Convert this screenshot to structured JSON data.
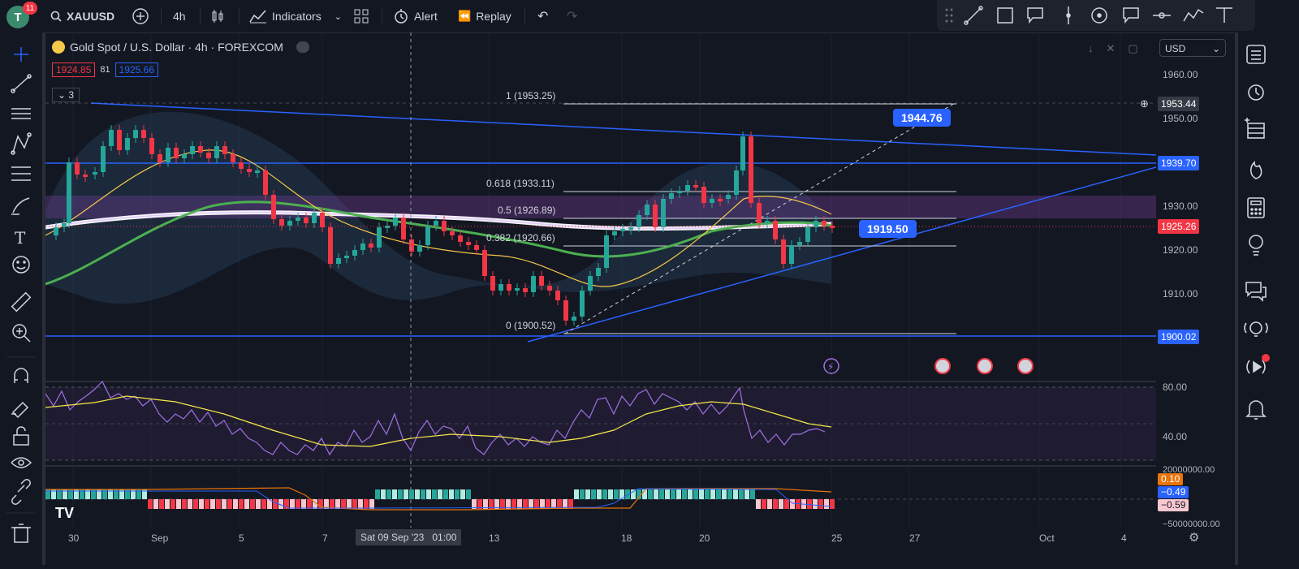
{
  "top": {
    "avatar_letter": "T",
    "notifications": "11",
    "symbol": "XAUUSD",
    "interval": "4h",
    "indicators": "Indicators",
    "alert": "Alert",
    "replay": "Replay"
  },
  "legend": {
    "title": "Gold Spot / U.S. Dollar · 4h · FOREXCOM",
    "bid": "1924.85",
    "spread": "81",
    "ask": "1925.66",
    "indicator_count": "3"
  },
  "currency": "USD",
  "fib_levels": [
    {
      "label": "1 (1953.25)"
    },
    {
      "label": "0.618 (1933.11)"
    },
    {
      "label": "0.5 (1926.89)"
    },
    {
      "label": "0.382 (1920.66)"
    },
    {
      "label": "0 (1900.52)"
    }
  ],
  "callouts": {
    "upper": "1944.76",
    "lower": "1919.50"
  },
  "price_axis": [
    "1960.00",
    "1950.00",
    "1940.00",
    "1930.00",
    "1920.00",
    "1910.00",
    "1900.00"
  ],
  "price_labels": {
    "crosshair": "1953.44",
    "upper_line": "1939.70",
    "last": "1925.26",
    "lower_line": "1900.02"
  },
  "rsi_axis": [
    "80.00",
    "40.00"
  ],
  "osc_axis": [
    "20000000.00",
    "−50000000.00"
  ],
  "osc_labels": {
    "a": "0.10",
    "b": "−0.49",
    "c": "−0.59"
  },
  "time_axis": [
    "30",
    "Sep",
    "5",
    "7",
    "13",
    "18",
    "20",
    "25",
    "27",
    "Oct",
    "4"
  ],
  "time_cursor": "Sat 09 Sep '23   01:00",
  "colors": {
    "up": "#26a69a",
    "down": "#f23645",
    "accent": "#2962ff",
    "bg": "#131722"
  }
}
